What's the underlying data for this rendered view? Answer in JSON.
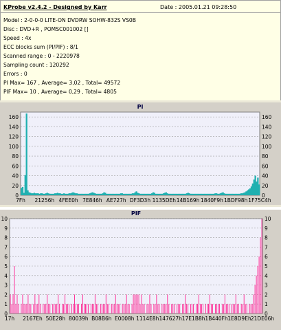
{
  "info": {
    "title": "KProbe v2.4.2 - Designed by Karr",
    "date": "Date : 2005.01.21 09:28:50",
    "lines": [
      "Model : 2-0-0-0 LITE-ON DVDRW SOHW-832S  VS0B",
      "Disc : DVD+R , POMSC001002 []",
      "Speed : 4x",
      "ECC blocks sum (PI/PIF) : 8/1",
      "Scanned range : 0 - 2220978",
      "Sampling count : 120292",
      "Errors : 0",
      "PI Max= 167 , Average= 3,02 , Total= 49572",
      "PIF Max= 10 , Average= 0,29 , Total= 4805"
    ]
  },
  "colors": {
    "pi_series": "#20b0b0",
    "pif_series": "#ff2090",
    "plot_bg": "#f0f0fa",
    "panel_bg": "#d4d0c8",
    "grid": "#a0a0a0"
  },
  "chart_data": [
    {
      "type": "area",
      "title": "PI",
      "x_tick_labels": [
        "7Fh",
        "21256h",
        "4FEE0h",
        "7E846h",
        "AE727h",
        "DF3D3h",
        "1135DEh",
        "14B169h",
        "1840F9h",
        "1BDF98h",
        "1F75C4h"
      ],
      "y_ticks": [
        0,
        20,
        40,
        60,
        80,
        100,
        120,
        140,
        160
      ],
      "ylim": [
        0,
        170
      ],
      "grid": true,
      "series": [
        {
          "values": [
            15,
            17,
            5,
            41,
            167,
            10,
            6,
            5,
            4,
            4,
            5,
            4,
            4,
            4,
            3,
            4,
            4,
            3,
            3,
            4,
            5,
            4,
            3,
            3,
            3,
            3,
            4,
            4,
            5,
            4,
            4,
            3,
            3,
            4,
            3,
            3,
            3,
            4,
            4,
            5,
            6,
            5,
            4,
            4,
            3,
            3,
            3,
            3,
            3,
            3,
            3,
            3,
            3,
            4,
            5,
            6,
            5,
            4,
            3,
            3,
            3,
            3,
            3,
            4,
            6,
            5,
            3,
            3,
            3,
            3,
            3,
            3,
            3,
            3,
            3,
            3,
            3,
            4,
            4,
            3,
            3,
            3,
            3,
            3,
            3,
            3,
            4,
            4,
            6,
            8,
            5,
            4,
            3,
            3,
            3,
            3,
            3,
            3,
            3,
            3,
            3,
            4,
            6,
            5,
            3,
            3,
            3,
            3,
            3,
            3,
            4,
            5,
            6,
            4,
            3,
            3,
            3,
            3,
            3,
            3,
            3,
            3,
            3,
            3,
            3,
            3,
            3,
            3,
            4,
            5,
            4,
            3,
            3,
            3,
            3,
            3,
            3,
            3,
            3,
            3,
            3,
            3,
            3,
            3,
            3,
            3,
            3,
            3,
            3,
            3,
            4,
            4,
            3,
            3,
            4,
            5,
            6,
            4,
            3,
            3,
            3,
            3,
            3,
            3,
            3,
            3,
            3,
            3,
            3,
            3,
            4,
            4,
            5,
            6,
            8,
            10,
            12,
            14,
            18,
            24,
            32,
            40,
            28,
            36,
            22
          ]
        }
      ]
    },
    {
      "type": "bar",
      "title": "PIF",
      "x_tick_labels": [
        "17h",
        "2167Eh",
        "50E28h",
        "80039h",
        "B08B6h",
        "E0008h",
        "1114E8h",
        "147627h",
        "17E1B8h",
        "1B440Fh",
        "1E8D9Eh",
        "21DE06h"
      ],
      "y_ticks": [
        0,
        1,
        2,
        3,
        4,
        5,
        6,
        7,
        8,
        9,
        10
      ],
      "ylim": [
        0,
        10
      ],
      "grid": true,
      "series": [
        {
          "values": [
            2,
            1,
            2,
            5,
            1,
            2,
            1,
            0,
            1,
            2,
            1,
            1,
            1,
            2,
            1,
            1,
            0,
            1,
            2,
            1,
            1,
            2,
            1,
            0,
            1,
            1,
            1,
            2,
            1,
            1,
            0,
            1,
            1,
            1,
            1,
            2,
            1,
            0,
            1,
            1,
            2,
            1,
            1,
            1,
            0,
            1,
            1,
            2,
            1,
            1,
            1,
            0,
            1,
            2,
            1,
            1,
            1,
            1,
            0,
            1,
            1,
            1,
            2,
            1,
            1,
            0,
            1,
            1,
            1,
            1,
            2,
            1,
            1,
            0,
            1,
            1,
            1,
            2,
            1,
            1,
            1,
            0,
            1,
            1,
            1,
            2,
            1,
            1,
            0,
            1,
            2,
            2,
            2,
            2,
            2,
            1,
            2,
            1,
            1,
            0,
            1,
            1,
            2,
            1,
            0,
            1,
            1,
            2,
            1,
            1,
            0,
            1,
            1,
            1,
            1,
            2,
            1,
            0,
            1,
            1,
            1,
            0,
            1,
            1,
            1,
            0,
            1,
            1,
            2,
            1,
            1,
            0,
            1,
            1,
            1,
            0,
            1,
            1,
            2,
            1,
            1,
            1,
            0,
            1,
            1,
            1,
            2,
            1,
            1,
            0,
            1,
            1,
            1,
            1,
            0,
            1,
            1,
            2,
            1,
            1,
            1,
            0,
            1,
            1,
            1,
            2,
            1,
            1,
            0,
            1,
            1,
            2,
            1,
            1,
            0,
            1,
            1,
            1,
            2,
            3,
            4,
            5,
            6,
            8,
            10
          ]
        }
      ]
    }
  ]
}
